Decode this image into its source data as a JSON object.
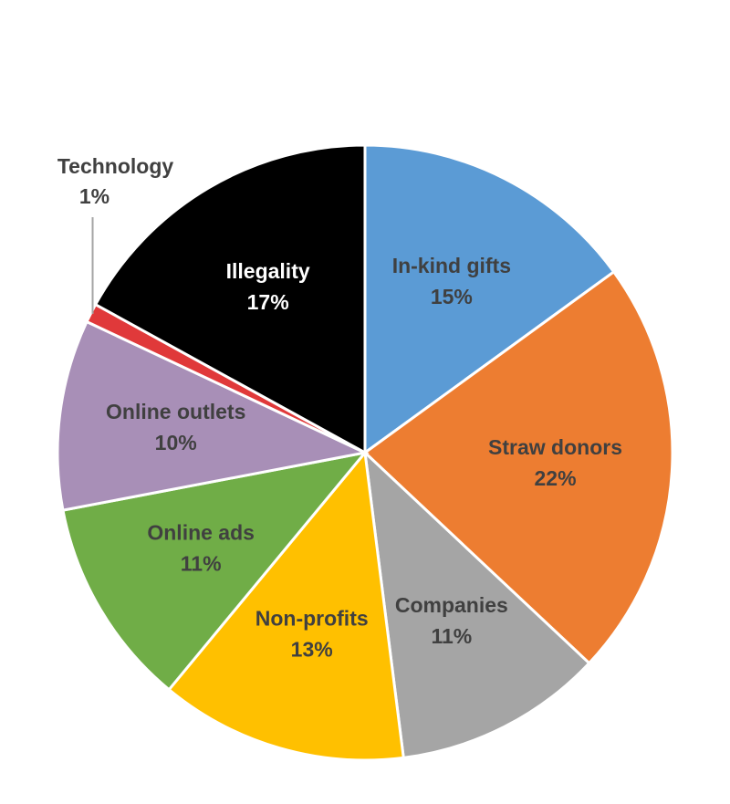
{
  "chart_data": {
    "type": "pie",
    "categories": [
      "In-kind gifts",
      "Straw donors",
      "Companies",
      "Non-profits",
      "Online ads",
      "Online outlets",
      "Technology",
      "Illegality"
    ],
    "values": [
      15,
      22,
      11,
      13,
      11,
      10,
      1,
      17
    ],
    "value_labels": [
      "15%",
      "22%",
      "11%",
      "13%",
      "11%",
      "10%",
      "1%",
      "17%"
    ],
    "colors": [
      "#5b9bd5",
      "#ed7d31",
      "#a5a5a5",
      "#ffc000",
      "#70ad47",
      "#a88fb7",
      "#e0393a",
      "#000000"
    ]
  }
}
